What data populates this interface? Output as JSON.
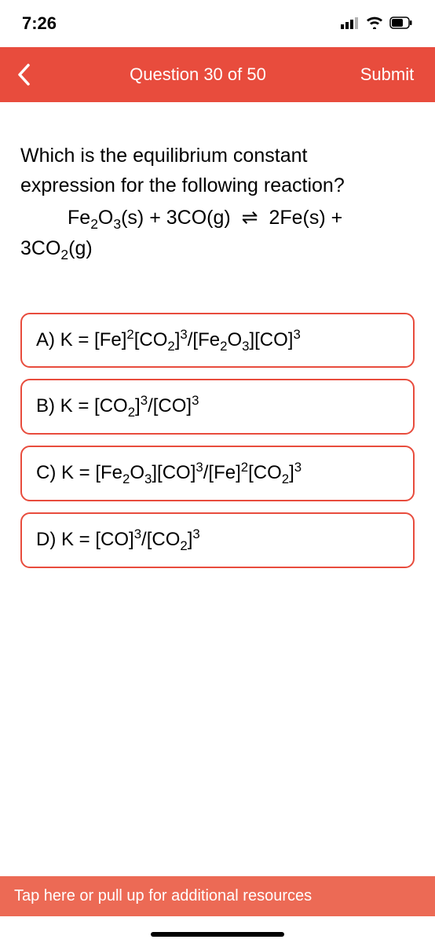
{
  "status": {
    "time": "7:26"
  },
  "nav": {
    "title": "Question 30 of 50",
    "submit_label": "Submit"
  },
  "question": {
    "line1": "Which is the equilibrium constant",
    "line2": "expression for the following reaction?",
    "equation_html": "Fe<sub>2</sub>O<sub>3</sub>(s) + 3CO(g) &nbsp;⇌&nbsp; 2Fe(s) + 3CO<sub>2</sub>(g)"
  },
  "options": [
    {
      "label_html": "A) K = [Fe]<sup>2</sup>[CO<sub>2</sub>]<sup>3</sup>/[Fe<sub>2</sub>O<sub>3</sub>][CO]<sup>3</sup>"
    },
    {
      "label_html": "B) K = [CO<sub>2</sub>]<sup>3</sup>/[CO]<sup>3</sup>"
    },
    {
      "label_html": "C) K = [Fe<sub>2</sub>O<sub>3</sub>][CO]<sup>3</sup>/[Fe]<sup>2</sup>[CO<sub>2</sub>]<sup>3</sup>"
    },
    {
      "label_html": "D) K = [CO]<sup>3</sup>/[CO<sub>2</sub>]<sup>3</sup>"
    }
  ],
  "footer": {
    "text": "Tap here or pull up for additional resources"
  },
  "colors": {
    "accent": "#e84c3d",
    "footer_bg": "#ec6a55"
  }
}
